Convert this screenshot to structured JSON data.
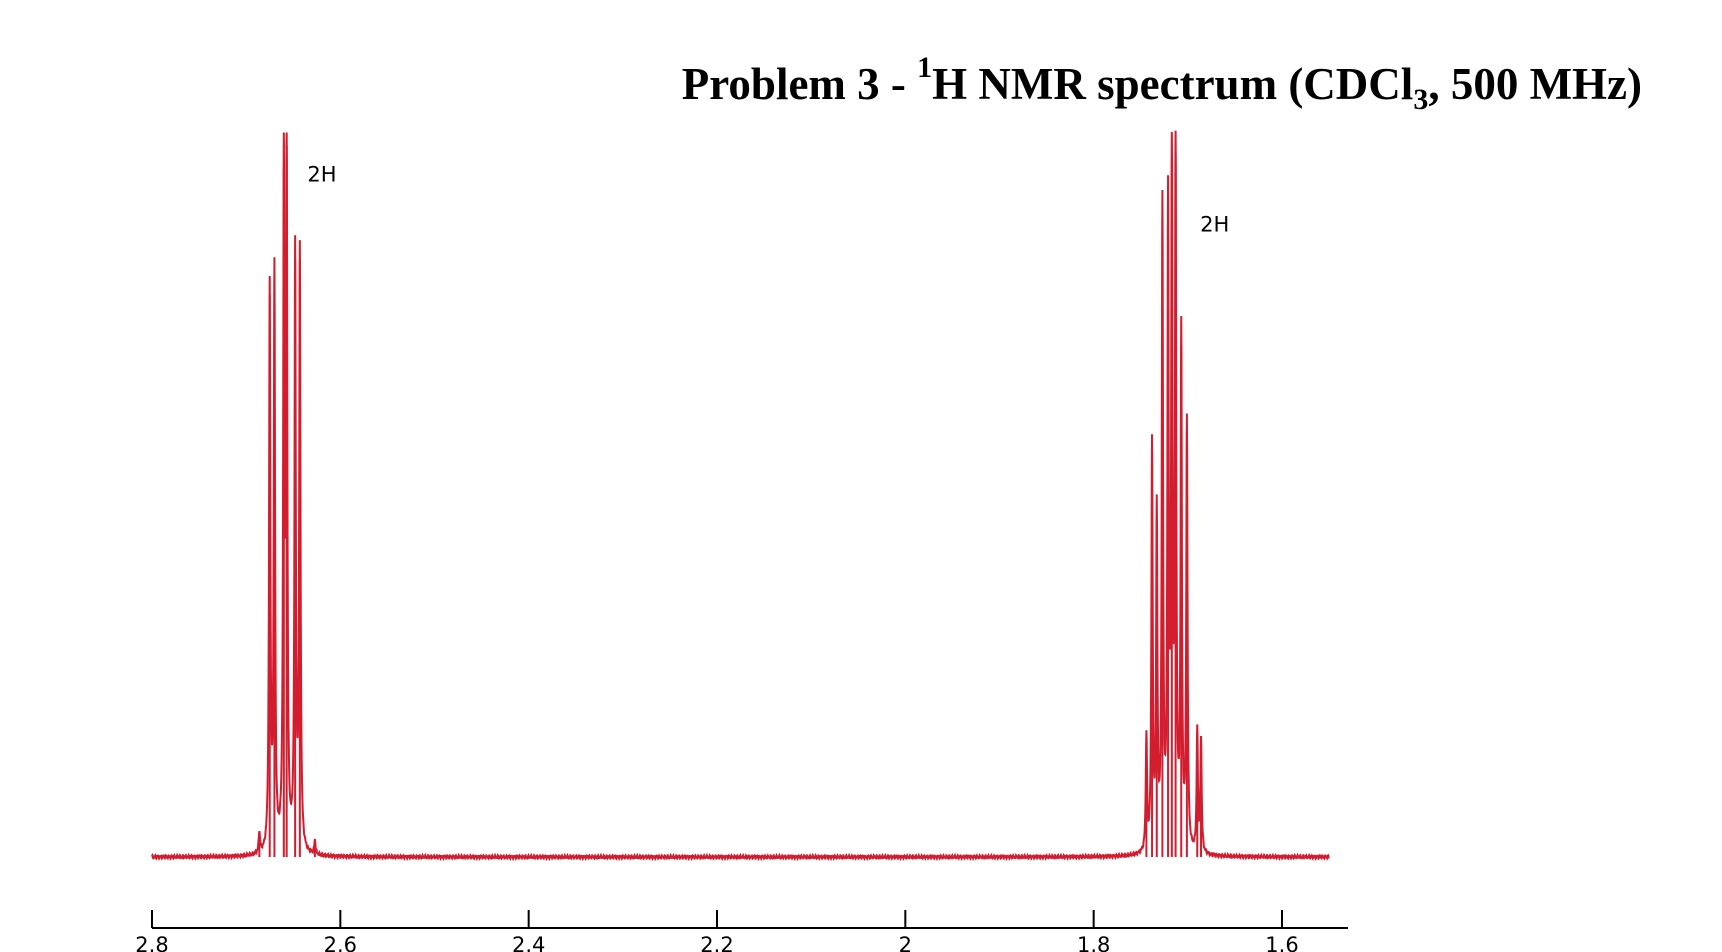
{
  "title": {
    "prefix": "Problem 3 - ",
    "superscript": "1",
    "middle": "H NMR spectrum (CDCl",
    "subscript": "3",
    "suffix": ", 500 MHz)"
  },
  "colors": {
    "trace": "#d31d2f",
    "axis": "#000000",
    "background": "#ffffff"
  },
  "chart_data": {
    "type": "line",
    "title": "Problem 3 - 1H NMR spectrum (CDCl3, 500 MHz)",
    "xlabel": "",
    "ylabel": "",
    "xlim": [
      2.8,
      1.55
    ],
    "x_reversed": true,
    "grid": false,
    "x_ticks": [
      2.8,
      2.6,
      2.4,
      2.2,
      2,
      1.8,
      1.6
    ],
    "x_tick_labels": [
      "2.8",
      "2.6",
      "2.4",
      "2.2",
      "2",
      "1.8",
      "1.6"
    ],
    "ylim": [
      0,
      1
    ],
    "series": [
      {
        "values_are": "relative intensity (tallest line = 1.0)",
        "multiplets": [
          {
            "center_ppm": 2.657,
            "integration": "2H",
            "lines": [
              {
                "ppm": 2.686,
                "height": 0.03
              },
              {
                "ppm": 2.675,
                "height": 0.79
              },
              {
                "ppm": 2.67,
                "height": 0.81
              },
              {
                "ppm": 2.66,
                "height": 0.97
              },
              {
                "ppm": 2.657,
                "height": 1.0
              },
              {
                "ppm": 2.648,
                "height": 0.84
              },
              {
                "ppm": 2.643,
                "height": 0.84
              },
              {
                "ppm": 2.627,
                "height": 0.02
              }
            ]
          },
          {
            "center_ppm": 1.714,
            "integration": "2H",
            "lines": [
              {
                "ppm": 1.744,
                "height": 0.16
              },
              {
                "ppm": 1.738,
                "height": 0.57
              },
              {
                "ppm": 1.733,
                "height": 0.47
              },
              {
                "ppm": 1.727,
                "height": 0.9
              },
              {
                "ppm": 1.721,
                "height": 0.89
              },
              {
                "ppm": 1.717,
                "height": 0.97
              },
              {
                "ppm": 1.713,
                "height": 0.99
              },
              {
                "ppm": 1.707,
                "height": 0.72
              },
              {
                "ppm": 1.701,
                "height": 0.6
              },
              {
                "ppm": 1.69,
                "height": 0.17
              },
              {
                "ppm": 1.686,
                "height": 0.16
              }
            ]
          }
        ]
      }
    ],
    "annotations": [
      {
        "text": "2H",
        "ppm": 2.635,
        "height": 0.95
      },
      {
        "text": "2H",
        "ppm": 1.687,
        "height": 0.88
      }
    ]
  }
}
